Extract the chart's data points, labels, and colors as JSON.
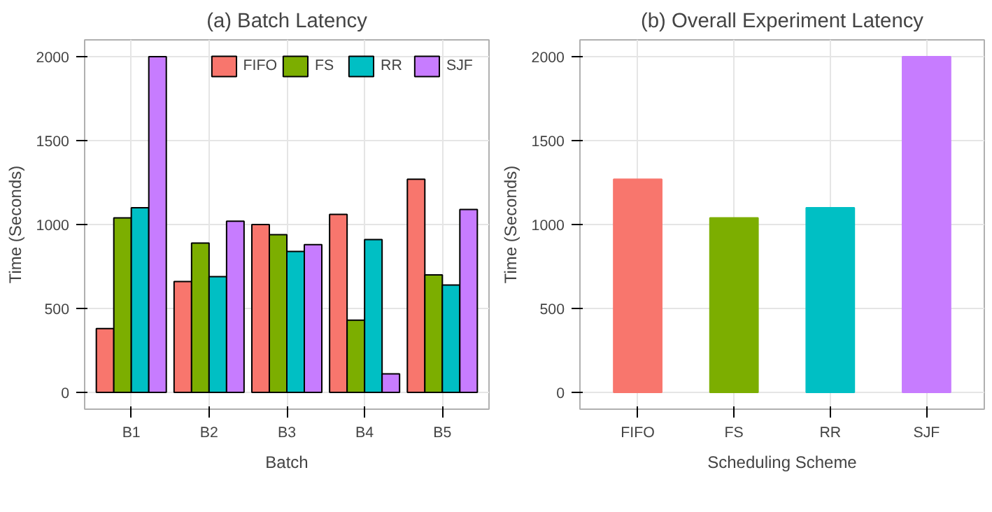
{
  "chart_data": [
    {
      "type": "bar",
      "title": "(a) Batch Latency",
      "xlabel": "Batch",
      "ylabel": "Time (Seconds)",
      "categories": [
        "B1",
        "B2",
        "B3",
        "B4",
        "B5"
      ],
      "series": [
        {
          "name": "FIFO",
          "color": "#f8766d",
          "values": [
            380,
            660,
            1000,
            1060,
            1270
          ]
        },
        {
          "name": "FS",
          "color": "#7cae00",
          "values": [
            1040,
            890,
            940,
            430,
            700
          ]
        },
        {
          "name": "RR",
          "color": "#00bfc4",
          "values": [
            1100,
            690,
            840,
            910,
            640
          ]
        },
        {
          "name": "SJF",
          "color": "#c77cff",
          "values": [
            2000,
            1020,
            880,
            110,
            1090
          ]
        }
      ],
      "ylim": [
        -100,
        2100
      ],
      "yticks": [
        0,
        500,
        1000,
        1500,
        2000
      ],
      "grid": true,
      "legend": "top right"
    },
    {
      "type": "bar",
      "title": "(b) Overall Experiment Latency",
      "xlabel": "Scheduling Scheme",
      "ylabel": "Time (Seconds)",
      "categories": [
        "FIFO",
        "FS",
        "RR",
        "SJF"
      ],
      "values": [
        1270,
        1040,
        1100,
        2000
      ],
      "colors": [
        "#f8766d",
        "#7cae00",
        "#00bfc4",
        "#c77cff"
      ],
      "ylim": [
        -100,
        2100
      ],
      "yticks": [
        0,
        500,
        1000,
        1500,
        2000
      ],
      "grid": true
    }
  ]
}
